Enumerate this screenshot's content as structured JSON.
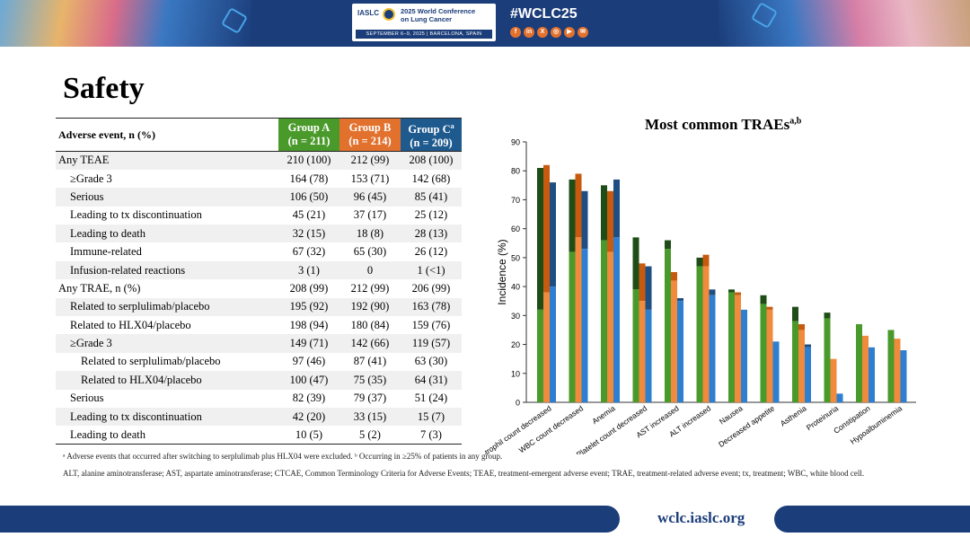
{
  "header": {
    "org": "IASLC",
    "conference_line1": "2025 World Conference",
    "conference_line2": "on Lung Cancer",
    "dates_location": "SEPTEMBER 6–9, 2025 | BARCELONA, SPAIN",
    "hashtag": "#WCLC25",
    "social_icons": [
      "facebook-icon",
      "linkedin-icon",
      "x-icon",
      "instagram-icon",
      "youtube-icon",
      "wechat-icon"
    ],
    "social_glyphs": [
      "f",
      "in",
      "X",
      "◎",
      "▶",
      "✉"
    ]
  },
  "page_title": "Safety",
  "table": {
    "header_ae": "Adverse event, n (%)",
    "groups": [
      {
        "name": "Group A",
        "n": "(n = 211)",
        "color": "#4a9a2b"
      },
      {
        "name": "Group B",
        "n": "(n = 214)",
        "color": "#e2712e"
      },
      {
        "name": "Group C",
        "sup": "a",
        "n": "(n = 209)",
        "color": "#1f5a8f"
      }
    ],
    "rows": [
      {
        "label": "Any TEAE",
        "indent": 0,
        "a": "210 (100)",
        "b": "212 (99)",
        "c": "208 (100)"
      },
      {
        "label": "≥Grade 3",
        "indent": 1,
        "a": "164 (78)",
        "b": "153 (71)",
        "c": "142 (68)"
      },
      {
        "label": "Serious",
        "indent": 1,
        "a": "106 (50)",
        "b": "96 (45)",
        "c": "85 (41)"
      },
      {
        "label": "Leading to tx discontinuation",
        "indent": 1,
        "a": "45 (21)",
        "b": "37 (17)",
        "c": "25 (12)"
      },
      {
        "label": "Leading to death",
        "indent": 1,
        "a": "32 (15)",
        "b": "18 (8)",
        "c": "28 (13)"
      },
      {
        "label": "Immune-related",
        "indent": 1,
        "a": "67 (32)",
        "b": "65 (30)",
        "c": "26 (12)"
      },
      {
        "label": "Infusion-related reactions",
        "indent": 1,
        "a": "3 (1)",
        "b": "0",
        "c": "1 (<1)"
      },
      {
        "label": "Any TRAE, n (%)",
        "indent": 0,
        "a": "208 (99)",
        "b": "212 (99)",
        "c": "206 (99)"
      },
      {
        "label": "Related to serplulimab/placebo",
        "indent": 1,
        "a": "195 (92)",
        "b": "192 (90)",
        "c": "163 (78)"
      },
      {
        "label": "Related to HLX04/placebo",
        "indent": 1,
        "a": "198 (94)",
        "b": "180 (84)",
        "c": "159 (76)"
      },
      {
        "label": "≥Grade 3",
        "indent": 1,
        "a": "149 (71)",
        "b": "142 (66)",
        "c": "119 (57)"
      },
      {
        "label": "Related to serplulimab/placebo",
        "indent": 2,
        "a": "97 (46)",
        "b": "87 (41)",
        "c": "63 (30)"
      },
      {
        "label": "Related to HLX04/placebo",
        "indent": 2,
        "a": "100 (47)",
        "b": "75 (35)",
        "c": "64 (31)"
      },
      {
        "label": "Serious",
        "indent": 1,
        "a": "82 (39)",
        "b": "79 (37)",
        "c": "51 (24)"
      },
      {
        "label": "Leading to tx discontinuation",
        "indent": 1,
        "a": "42 (20)",
        "b": "33 (15)",
        "c": "15 (7)"
      },
      {
        "label": "Leading to death",
        "indent": 1,
        "a": "10 (5)",
        "b": "5 (2)",
        "c": "7 (3)"
      }
    ]
  },
  "footnotes": {
    "line1": "ᵃ Adverse events that occurred after switching to serplulimab plus HLX04 were excluded. ᵇ Occurring in ≥25% of patients in any group.",
    "line2": "ALT, alanine aminotransferase; AST, aspartate aminotransferase; CTCAE, Common Terminology Criteria for Adverse Events; TEAE, treatment-emergent adverse event; TRAE, treatment-related adverse event; tx, treatment; WBC, white blood cell."
  },
  "footer": {
    "url": "wclc.iaslc.org"
  },
  "chart_data": {
    "type": "bar",
    "title": "Most common TRAEs",
    "title_sup": "a,b",
    "ylabel": "Incidence (%)",
    "xlabel": "",
    "ylim": [
      0,
      90
    ],
    "yticks": [
      0,
      10,
      20,
      30,
      40,
      50,
      60,
      70,
      80,
      90
    ],
    "grid": false,
    "stacked_within_group": true,
    "categories": [
      "Neutrophil count decreased",
      "WBC count decreased",
      "Anemia",
      "Platelet count decreased",
      "AST increased",
      "ALT increased",
      "Nausea",
      "Decreased appetite",
      "Asthenia",
      "Proteinuria",
      "Constipation",
      "Hypoalbuminemia"
    ],
    "series": [
      {
        "name": "Group A",
        "color": "#4a9a2b",
        "dark_color": "#1f4d17",
        "values": [
          81,
          77,
          75,
          57,
          56,
          50,
          39,
          37,
          33,
          31,
          27,
          25
        ],
        "grade3_values": [
          32,
          52,
          56,
          39,
          53,
          47,
          38,
          34,
          28,
          29,
          27,
          25
        ]
      },
      {
        "name": "Group B",
        "color": "#f08a3c",
        "dark_color": "#c85a10",
        "values": [
          82,
          79,
          73,
          48,
          45,
          51,
          38,
          33,
          27,
          15,
          23,
          22
        ],
        "grade3_values": [
          38,
          57,
          52,
          35,
          42,
          47,
          37,
          32,
          25,
          15,
          23,
          22
        ]
      },
      {
        "name": "Group C",
        "color": "#2e7fd0",
        "dark_color": "#1f4f82",
        "values": [
          76,
          73,
          77,
          47,
          36,
          39,
          32,
          21,
          20,
          3,
          19,
          18
        ],
        "grade3_values": [
          40,
          53,
          57,
          32,
          35,
          37,
          32,
          21,
          19,
          3,
          19,
          18
        ]
      }
    ]
  }
}
